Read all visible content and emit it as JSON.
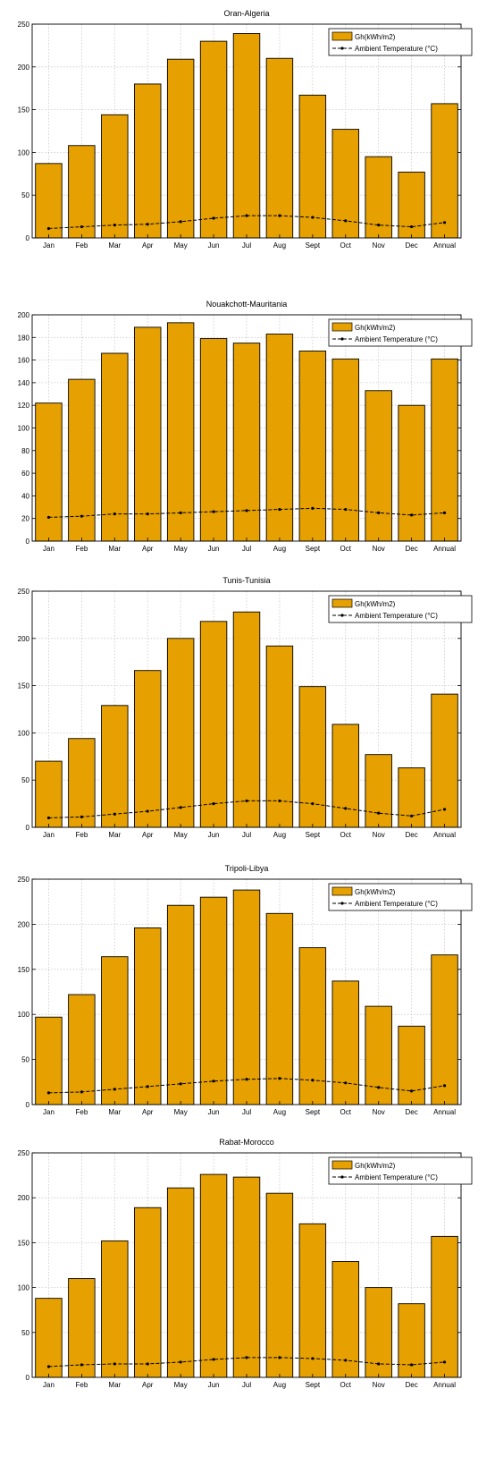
{
  "style": {
    "bar_color": "#E6A000",
    "bar_edge": "#000000",
    "line_color": "#000000",
    "grid_color": "#c8c8c8"
  },
  "chart_data": [
    {
      "type": "bar",
      "title": "Oran-Algeria",
      "categories": [
        "Jan",
        "Feb",
        "Mar",
        "Apr",
        "May",
        "Jun",
        "Jul",
        "Aug",
        "Sept",
        "Oct",
        "Nov",
        "Dec",
        "Annual"
      ],
      "series": [
        {
          "name": "Gh(kWh/m2)",
          "kind": "bar",
          "values": [
            87,
            108,
            144,
            180,
            209,
            230,
            239,
            210,
            167,
            127,
            95,
            77,
            157
          ]
        },
        {
          "name": "Ambient Temperature (°C)",
          "kind": "line",
          "values": [
            11,
            13,
            15,
            16,
            19,
            23,
            26,
            26,
            24,
            20,
            15,
            13,
            18
          ]
        }
      ],
      "ylim": [
        0,
        250
      ],
      "yticks": [
        0,
        50,
        100,
        150,
        200,
        250
      ],
      "grid": true,
      "legend_position": "top-right"
    },
    {
      "type": "bar",
      "title": "Nouakchott-Mauritania",
      "categories": [
        "Jan",
        "Feb",
        "Mar",
        "Apr",
        "May",
        "Jun",
        "Jul",
        "Aug",
        "Sept",
        "Oct",
        "Nov",
        "Dec",
        "Annual"
      ],
      "series": [
        {
          "name": "Gh(kWh/m2)",
          "kind": "bar",
          "values": [
            122,
            143,
            166,
            189,
            193,
            179,
            175,
            183,
            168,
            161,
            133,
            120,
            161
          ]
        },
        {
          "name": "Ambient Temperature (°C)",
          "kind": "line",
          "values": [
            21,
            22,
            24,
            24,
            25,
            26,
            27,
            28,
            29,
            28,
            25,
            23,
            25
          ]
        }
      ],
      "ylim": [
        0,
        200
      ],
      "yticks": [
        0,
        20,
        40,
        60,
        80,
        100,
        120,
        140,
        160,
        180,
        200
      ],
      "grid": true,
      "legend_position": "top-right"
    },
    {
      "type": "bar",
      "title": "Tunis-Tunisia",
      "categories": [
        "Jan",
        "Feb",
        "Mar",
        "Apr",
        "May",
        "Jun",
        "Jul",
        "Aug",
        "Sept",
        "Oct",
        "Nov",
        "Dec",
        "Annual"
      ],
      "series": [
        {
          "name": "Gh(kWh/m2)",
          "kind": "bar",
          "values": [
            70,
            94,
            129,
            166,
            200,
            218,
            228,
            192,
            149,
            109,
            77,
            63,
            141
          ]
        },
        {
          "name": "Ambient Temperature (°C)",
          "kind": "line",
          "values": [
            10,
            11,
            14,
            17,
            21,
            25,
            28,
            28,
            25,
            20,
            15,
            12,
            19
          ]
        }
      ],
      "ylim": [
        0,
        250
      ],
      "yticks": [
        0,
        50,
        100,
        150,
        200,
        250
      ],
      "grid": true,
      "legend_position": "top-right"
    },
    {
      "type": "bar",
      "title": "Tripoli-Libya",
      "categories": [
        "Jan",
        "Feb",
        "Mar",
        "Apr",
        "May",
        "Jun",
        "Jul",
        "Aug",
        "Sept",
        "Oct",
        "Nov",
        "Dec",
        "Annual"
      ],
      "series": [
        {
          "name": "Gh(kWh/m2)",
          "kind": "bar",
          "values": [
            97,
            122,
            164,
            196,
            221,
            230,
            238,
            212,
            174,
            137,
            109,
            87,
            166
          ]
        },
        {
          "name": "Ambient Temperature (°C)",
          "kind": "line",
          "values": [
            13,
            14,
            17,
            20,
            23,
            26,
            28,
            29,
            27,
            24,
            19,
            15,
            21
          ]
        }
      ],
      "ylim": [
        0,
        250
      ],
      "yticks": [
        0,
        50,
        100,
        150,
        200,
        250
      ],
      "grid": true,
      "legend_position": "top-right"
    },
    {
      "type": "bar",
      "title": "Rabat-Morocco",
      "categories": [
        "Jan",
        "Feb",
        "Mar",
        "Apr",
        "May",
        "Jun",
        "Jul",
        "Aug",
        "Sept",
        "Oct",
        "Nov",
        "Dec",
        "Annual"
      ],
      "series": [
        {
          "name": "Gh(kWh/m2)",
          "kind": "bar",
          "values": [
            88,
            110,
            152,
            189,
            211,
            226,
            223,
            205,
            171,
            129,
            100,
            82,
            157
          ]
        },
        {
          "name": "Ambient Temperature (°C)",
          "kind": "line",
          "values": [
            12,
            14,
            15,
            15,
            17,
            20,
            22,
            22,
            21,
            19,
            15,
            14,
            17
          ]
        }
      ],
      "ylim": [
        0,
        250
      ],
      "yticks": [
        0,
        50,
        100,
        150,
        200,
        250
      ],
      "grid": true,
      "legend_position": "top-right"
    }
  ]
}
